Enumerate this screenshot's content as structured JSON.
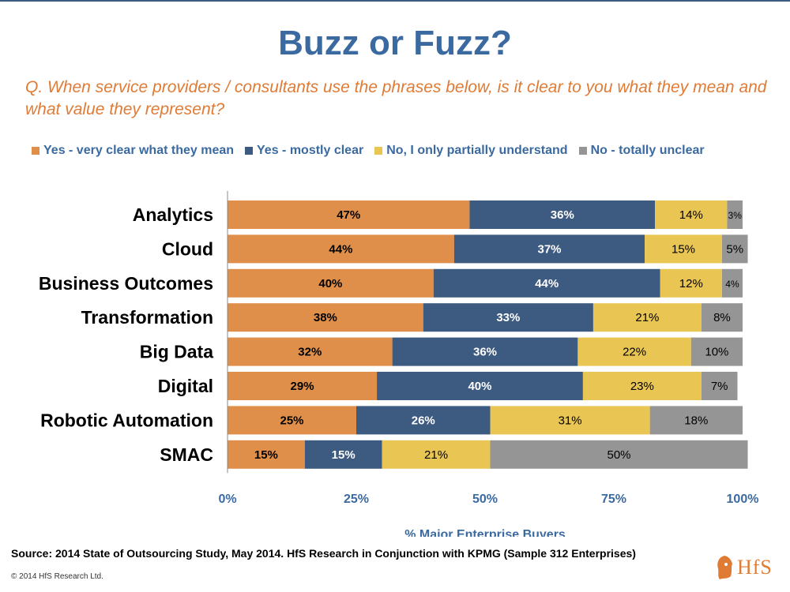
{
  "header": {
    "title": "Buzz or Fuzz?",
    "question": "Q. When service providers / consultants use the phrases below, is it clear to you what they mean and what value they represent?"
  },
  "colors": {
    "very_clear": "#e08f4a",
    "mostly_clear": "#3d5a80",
    "partial": "#e9c554",
    "unclear": "#959595",
    "accent_blue": "#3b6aa0",
    "accent_orange": "#e07b35"
  },
  "chart_data": {
    "type": "bar",
    "orientation": "horizontal",
    "stacked": true,
    "categories": [
      "Analytics",
      "Cloud",
      "Business Outcomes",
      "Transformation",
      "Big Data",
      "Digital",
      "Robotic Automation",
      "SMAC"
    ],
    "series": [
      {
        "name": "Yes - very clear what they mean",
        "values": [
          47,
          44,
          40,
          38,
          32,
          29,
          25,
          15
        ]
      },
      {
        "name": "Yes - mostly clear",
        "values": [
          36,
          37,
          44,
          33,
          36,
          40,
          26,
          15
        ]
      },
      {
        "name": "No, I only partially understand",
        "values": [
          14,
          15,
          12,
          21,
          22,
          23,
          31,
          21
        ]
      },
      {
        "name": "No - totally unclear",
        "values": [
          3,
          5,
          4,
          8,
          10,
          7,
          18,
          50
        ]
      }
    ],
    "data_labels": [
      [
        "47%",
        "44%",
        "40%",
        "38%",
        "32%",
        "29%",
        "25%",
        "15%"
      ],
      [
        "36%",
        "37%",
        "44%",
        "33%",
        "36%",
        "40%",
        "26%",
        "15%"
      ],
      [
        "14%",
        "15%",
        "12%",
        "21%",
        "22%",
        "23%",
        "31%",
        "21%"
      ],
      [
        "3%",
        "5%",
        "4%",
        "8%",
        "10%",
        "7%",
        "18%",
        "50%"
      ]
    ],
    "xticks": [
      "0%",
      "25%",
      "50%",
      "75%",
      "100%"
    ],
    "xlim": [
      0,
      100
    ],
    "xlabel": "% Major Enterprise Buyers",
    "ylabel": "",
    "grid": false,
    "legend_position": "top"
  },
  "footer": {
    "source": "Source:  2014 State of Outsourcing Study, May 2014.  HfS Research in Conjunction with KPMG (Sample 312 Enterprises)",
    "copyright": "© 2014 HfS Research Ltd.",
    "logo_text": "HfS"
  }
}
